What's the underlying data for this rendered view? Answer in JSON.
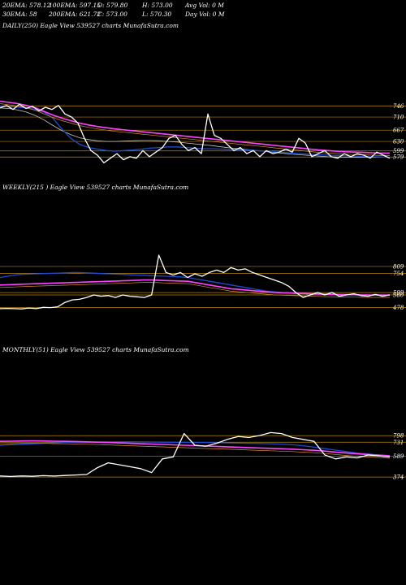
{
  "header": {
    "ema20": "20EMA: 578.12",
    "ema30": "30EMA: 58",
    "ema100": "100EMA: 597.15",
    "ema200": "200EMA: 621.72",
    "open": "O: 579.80",
    "close": "C: 573.00",
    "high": "H: 573.00",
    "low": "L: 570.30",
    "avg_vol": "Avg Vol: 0  M",
    "day_vol": "Day Vol: 0  M"
  },
  "colors": {
    "background": "#000000",
    "price": "#ffffff",
    "level_line": "#b8860b",
    "ema_short": "#1e4bd2",
    "ema_mid": "#c8c8c8",
    "ema_long": "#ff44ff",
    "ema_orange": "#e08a2a"
  },
  "panels": [
    {
      "id": "daily",
      "title": "DAILY(250) Eagle   View  539527 charts MunafaSutra.com",
      "chart_data": {
        "type": "line",
        "title": "DAILY(250) Eagle   View  539527 charts MunafaSutra.com",
        "levels": [
          {
            "label": "746",
            "value": 746
          },
          {
            "label": "710",
            "value": 710
          },
          {
            "label": "667",
            "value": 667
          },
          {
            "label": "630",
            "value": 630
          },
          {
            "label": "599",
            "value": 599
          },
          {
            "label": "579",
            "value": 579
          }
        ],
        "ylim": [
          545,
          790
        ],
        "series": [
          {
            "role": "price",
            "values": [
              740,
              748,
              735,
              752,
              738,
              745,
              730,
              742,
              735,
              748,
              720,
              710,
              690,
              640,
              600,
              585,
              560,
              575,
              590,
              570,
              580,
              575,
              600,
              580,
              595,
              610,
              640,
              650,
              620,
              600,
              610,
              590,
              720,
              650,
              640,
              620,
              600,
              610,
              590,
              600,
              580,
              600,
              590,
              595,
              605,
              595,
              640,
              625,
              580,
              590,
              600,
              580,
              575,
              590,
              580,
              590,
              585,
              575,
              595,
              585,
              575
            ]
          },
          {
            "role": "ema_short",
            "values": [
              745,
              744,
              742,
              740,
              735,
              725,
              705,
              670,
              640,
              620,
              610,
              605,
              600,
              598,
              600,
              602,
              605,
              608,
              610,
              612,
              612,
              610,
              608,
              606,
              606,
              605,
              604,
              603,
              602,
              600,
              598,
              596,
              594,
              592,
              590,
              588,
              586,
              585,
              584,
              583,
              582,
              581,
              580,
              579,
              578
            ]
          },
          {
            "role": "ema_mid",
            "values": [
              740,
              738,
              733,
              726,
              715,
              700,
              682,
              665,
              652,
              642,
              636,
              632,
              630,
              630,
              631,
              632,
              633,
              633,
              632,
              630,
              628,
              625,
              622,
              619,
              616,
              612,
              609,
              606,
              603,
              600,
              597,
              594,
              591,
              588,
              586,
              584,
              582,
              580,
              579,
              578,
              578,
              578,
              578,
              578,
              578
            ]
          },
          {
            "role": "ema_long",
            "values": [
              762,
              758,
              754,
              748,
              740,
              728,
              716,
              706,
              698,
              690,
              684,
              679,
              675,
              671,
              668,
              665,
              662,
              659,
              656,
              653,
              650,
              647,
              644,
              641,
              638,
              635,
              632,
              629,
              626,
              623,
              620,
              617,
              614,
              611,
              608,
              605,
              602,
              600,
              598,
              596,
              595,
              594,
              593,
              592,
              592
            ]
          }
        ]
      }
    },
    {
      "id": "weekly",
      "title": "WEEKLY(215                   ) Eagle   View  539527 charts MunafaSutra.com",
      "chart_data": {
        "type": "line",
        "title": "WEEKLY(215                   ) Eagle   View  539527 charts MunafaSutra.com",
        "levels": [
          {
            "label": "809",
            "value": 809
          },
          {
            "label": "754",
            "value": 754
          },
          {
            "label": "599",
            "value": 599
          },
          {
            "label": "580",
            "value": 580
          },
          {
            "label": "478",
            "value": 478
          }
        ],
        "ylim": [
          430,
          900
        ],
        "series": [
          {
            "role": "price",
            "values": [
              470,
              472,
              470,
              468,
              475,
              470,
              480,
              478,
              485,
              520,
              540,
              545,
              560,
              580,
              570,
              575,
              560,
              580,
              570,
              565,
              560,
              580,
              900,
              760,
              740,
              760,
              720,
              750,
              730,
              760,
              780,
              760,
              800,
              780,
              790,
              760,
              740,
              720,
              700,
              680,
              650,
              600,
              560,
              580,
              600,
              580,
              600,
              570,
              580,
              590,
              575,
              570,
              585,
              570,
              580
            ]
          },
          {
            "role": "ema_short",
            "values": [
              720,
              730,
              740,
              745,
              748,
              750,
              752,
              754,
              756,
              758,
              760,
              760,
              758,
              755,
              752,
              750,
              748,
              745,
              742,
              740,
              738,
              735,
              732,
              730,
              728,
              725,
              720,
              710,
              700,
              690,
              680,
              670,
              660,
              650,
              640,
              630,
              620,
              610,
              605,
              600,
              596,
              592,
              590,
              588,
              586,
              585,
              584,
              583,
              582,
              581,
              580,
              579,
              578,
              578,
              578
            ]
          },
          {
            "role": "ema_long",
            "values": [
              660,
              662,
              664,
              666,
              668,
              670,
              672,
              674,
              676,
              678,
              680,
              682,
              684,
              686,
              688,
              690,
              692,
              694,
              696,
              698,
              700,
              700,
              698,
              696,
              694,
              692,
              690,
              680,
              670,
              660,
              650,
              640,
              630,
              625,
              620,
              615,
              610,
              605,
              600,
              598,
              596,
              594,
              592,
              590,
              588,
              586,
              585,
              584,
              583,
              582,
              581,
              580,
              580,
              580,
              580
            ]
          }
        ]
      }
    },
    {
      "id": "monthly",
      "title": "MONTHLY(51) Eagle   View  539527 charts MunafaSutra.com",
      "chart_data": {
        "type": "line",
        "title": "MONTHLY(51) Eagle   View  539527 charts MunafaSutra.com",
        "levels": [
          {
            "label": "798",
            "value": 798
          },
          {
            "label": "731",
            "value": 731
          },
          {
            "label": "589",
            "value": 589
          },
          {
            "label": "374",
            "value": 374
          }
        ],
        "ylim": [
          300,
          900
        ],
        "series": [
          {
            "role": "price",
            "values": [
              385,
              380,
              385,
              382,
              388,
              384,
              390,
              395,
              400,
              470,
              520,
              500,
              480,
              460,
              420,
              560,
              580,
              820,
              700,
              690,
              720,
              760,
              790,
              780,
              800,
              830,
              820,
              780,
              760,
              740,
              600,
              560,
              580,
              570,
              600,
              590,
              580
            ]
          },
          {
            "role": "ema_short",
            "values": [
              700,
              705,
              710,
              715,
              720,
              725,
              728,
              730,
              732,
              733,
              734,
              735,
              735,
              734,
              733,
              732,
              731,
              730,
              729,
              728,
              726,
              724,
              722,
              720,
              718,
              716,
              712,
              705,
              695,
              680,
              665,
              650,
              635,
              620,
              610,
              600,
              595
            ]
          },
          {
            "role": "ema_long",
            "values": [
              740,
              742,
              744,
              745,
              744,
              742,
              740,
              738,
              735,
              732,
              728,
              724,
              720,
              716,
              712,
              708,
              704,
              700,
              696,
              692,
              688,
              684,
              680,
              676,
              672,
              668,
              664,
              660,
              654,
              648,
              640,
              630,
              620,
              612,
              605,
              598,
              592
            ]
          }
        ]
      }
    }
  ]
}
